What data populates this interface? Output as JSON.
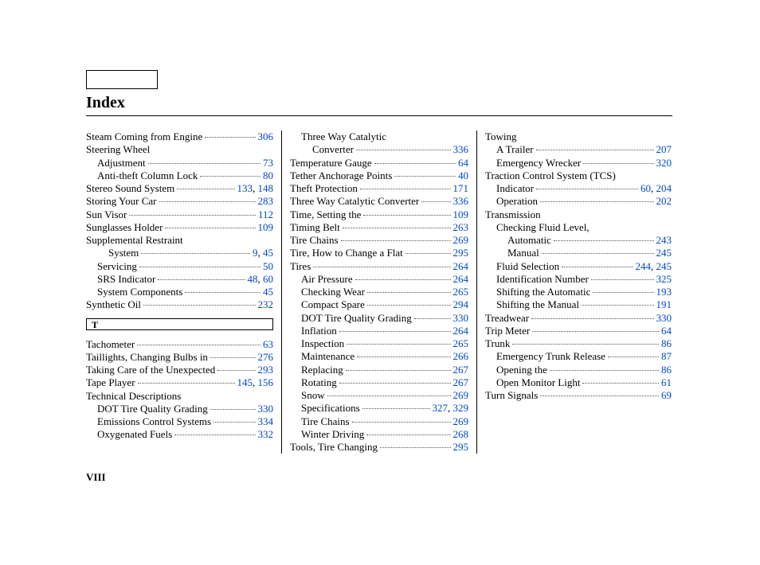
{
  "title": "Index",
  "page_number": "VIII",
  "link_color": "#0046c8",
  "text_color": "#000000",
  "columns": [
    {
      "blocks": [
        {
          "type": "entry",
          "indent": 0,
          "label": "Steam Coming from Engine",
          "pages": [
            "306"
          ]
        },
        {
          "type": "entry",
          "indent": 0,
          "label": "Steering Wheel",
          "pages": []
        },
        {
          "type": "entry",
          "indent": 1,
          "label": "Adjustment",
          "pages": [
            "73"
          ]
        },
        {
          "type": "entry",
          "indent": 1,
          "label": "Anti-theft Column Lock",
          "pages": [
            "80"
          ]
        },
        {
          "type": "entry",
          "indent": 0,
          "label": "Stereo Sound System",
          "pages": [
            "133",
            "148"
          ]
        },
        {
          "type": "entry",
          "indent": 0,
          "label": "Storing Your Car",
          "pages": [
            "283"
          ]
        },
        {
          "type": "entry",
          "indent": 0,
          "label": "Sun Visor",
          "pages": [
            "112"
          ]
        },
        {
          "type": "entry",
          "indent": 0,
          "label": "Sunglasses Holder",
          "pages": [
            "109"
          ]
        },
        {
          "type": "entry",
          "indent": 0,
          "label": "Supplemental Restraint",
          "pages": []
        },
        {
          "type": "entry",
          "indent": 2,
          "label": "System",
          "pages": [
            "9",
            "45"
          ]
        },
        {
          "type": "entry",
          "indent": 1,
          "label": "Servicing",
          "pages": [
            "50"
          ]
        },
        {
          "type": "entry",
          "indent": 1,
          "label": "SRS Indicator",
          "pages": [
            "48",
            "60"
          ]
        },
        {
          "type": "entry",
          "indent": 1,
          "label": "System Components",
          "pages": [
            "45"
          ]
        },
        {
          "type": "entry",
          "indent": 0,
          "label": "Synthetic Oil",
          "pages": [
            "232"
          ]
        },
        {
          "type": "letter",
          "label": "T"
        },
        {
          "type": "entry",
          "indent": 0,
          "label": "Tachometer",
          "pages": [
            "63"
          ]
        },
        {
          "type": "entry",
          "indent": 0,
          "label": "Taillights, Changing Bulbs in",
          "pages": [
            "276"
          ]
        },
        {
          "type": "entry",
          "indent": 0,
          "label": "Taking Care of the Unexpected",
          "pages": [
            "293"
          ]
        },
        {
          "type": "entry",
          "indent": 0,
          "label": "Tape Player",
          "pages": [
            "145",
            "156"
          ]
        },
        {
          "type": "entry",
          "indent": 0,
          "label": "Technical Descriptions",
          "pages": []
        },
        {
          "type": "entry",
          "indent": 1,
          "label": "DOT Tire Quality Grading",
          "pages": [
            "330"
          ]
        },
        {
          "type": "entry",
          "indent": 1,
          "label": "Emissions Control Systems",
          "pages": [
            "334"
          ]
        },
        {
          "type": "entry",
          "indent": 1,
          "label": "Oxygenated Fuels",
          "pages": [
            "332"
          ]
        }
      ]
    },
    {
      "blocks": [
        {
          "type": "entry",
          "indent": 1,
          "label": "Three Way Catalytic",
          "pages": []
        },
        {
          "type": "entry",
          "indent": 2,
          "label": "Converter",
          "pages": [
            "336"
          ]
        },
        {
          "type": "entry",
          "indent": 0,
          "label": "Temperature Gauge",
          "pages": [
            "64"
          ]
        },
        {
          "type": "entry",
          "indent": 0,
          "label": "Tether Anchorage Points",
          "pages": [
            "40"
          ]
        },
        {
          "type": "entry",
          "indent": 0,
          "label": "Theft Protection",
          "pages": [
            "171"
          ]
        },
        {
          "type": "entry",
          "indent": 0,
          "label": "Three Way Catalytic Converter",
          "pages": [
            "336"
          ]
        },
        {
          "type": "entry",
          "indent": 0,
          "label": "Time, Setting the",
          "pages": [
            "109"
          ]
        },
        {
          "type": "entry",
          "indent": 0,
          "label": "Timing Belt",
          "pages": [
            "263"
          ]
        },
        {
          "type": "entry",
          "indent": 0,
          "label": "Tire Chains",
          "pages": [
            "269"
          ]
        },
        {
          "type": "entry",
          "indent": 0,
          "label": "Tire, How to Change a Flat",
          "pages": [
            "295"
          ]
        },
        {
          "type": "entry",
          "indent": 0,
          "label": "Tires",
          "pages": [
            "264"
          ]
        },
        {
          "type": "entry",
          "indent": 1,
          "label": "Air Pressure",
          "pages": [
            "264"
          ]
        },
        {
          "type": "entry",
          "indent": 1,
          "label": "Checking Wear",
          "pages": [
            "265"
          ]
        },
        {
          "type": "entry",
          "indent": 1,
          "label": "Compact Spare",
          "pages": [
            "294"
          ]
        },
        {
          "type": "entry",
          "indent": 1,
          "label": "DOT Tire Quality Grading",
          "pages": [
            "330"
          ]
        },
        {
          "type": "entry",
          "indent": 1,
          "label": "Inflation",
          "pages": [
            "264"
          ]
        },
        {
          "type": "entry",
          "indent": 1,
          "label": "Inspection",
          "pages": [
            "265"
          ]
        },
        {
          "type": "entry",
          "indent": 1,
          "label": "Maintenance",
          "pages": [
            "266"
          ]
        },
        {
          "type": "entry",
          "indent": 1,
          "label": "Replacing",
          "pages": [
            "267"
          ]
        },
        {
          "type": "entry",
          "indent": 1,
          "label": "Rotating",
          "pages": [
            "267"
          ]
        },
        {
          "type": "entry",
          "indent": 1,
          "label": "Snow",
          "pages": [
            "269"
          ]
        },
        {
          "type": "entry",
          "indent": 1,
          "label": "Specifications",
          "pages": [
            "327",
            "329"
          ]
        },
        {
          "type": "entry",
          "indent": 1,
          "label": "Tire Chains",
          "pages": [
            "269"
          ]
        },
        {
          "type": "entry",
          "indent": 1,
          "label": "Winter Driving",
          "pages": [
            "268"
          ]
        },
        {
          "type": "entry",
          "indent": 0,
          "label": "Tools, Tire Changing",
          "pages": [
            "295"
          ]
        }
      ]
    },
    {
      "blocks": [
        {
          "type": "entry",
          "indent": 0,
          "label": "Towing",
          "pages": []
        },
        {
          "type": "entry",
          "indent": 1,
          "label": "A Trailer",
          "pages": [
            "207"
          ]
        },
        {
          "type": "entry",
          "indent": 1,
          "label": "Emergency Wrecker",
          "pages": [
            "320"
          ]
        },
        {
          "type": "entry",
          "indent": 0,
          "label": "Traction Control System (TCS)",
          "pages": []
        },
        {
          "type": "entry",
          "indent": 1,
          "label": "Indicator",
          "pages": [
            "60",
            "204"
          ]
        },
        {
          "type": "entry",
          "indent": 1,
          "label": "Operation",
          "pages": [
            "202"
          ]
        },
        {
          "type": "entry",
          "indent": 0,
          "label": "Transmission",
          "pages": []
        },
        {
          "type": "entry",
          "indent": 1,
          "label": "Checking Fluid Level,",
          "pages": []
        },
        {
          "type": "entry",
          "indent": 2,
          "label": "Automatic",
          "pages": [
            "243"
          ]
        },
        {
          "type": "entry",
          "indent": 2,
          "label": "Manual",
          "pages": [
            "245"
          ]
        },
        {
          "type": "entry",
          "indent": 1,
          "label": "Fluid Selection",
          "pages": [
            "244",
            "245"
          ]
        },
        {
          "type": "entry",
          "indent": 1,
          "label": "Identification Number",
          "pages": [
            "325"
          ]
        },
        {
          "type": "entry",
          "indent": 1,
          "label": "Shifting the Automatic",
          "pages": [
            "193"
          ]
        },
        {
          "type": "entry",
          "indent": 1,
          "label": "Shifting the Manual",
          "pages": [
            "191"
          ]
        },
        {
          "type": "entry",
          "indent": 0,
          "label": "Treadwear",
          "pages": [
            "330"
          ]
        },
        {
          "type": "entry",
          "indent": 0,
          "label": "Trip Meter",
          "pages": [
            "64"
          ]
        },
        {
          "type": "entry",
          "indent": 0,
          "label": "Trunk",
          "pages": [
            "86"
          ]
        },
        {
          "type": "entry",
          "indent": 1,
          "label": "Emergency Trunk Release",
          "pages": [
            "87"
          ]
        },
        {
          "type": "entry",
          "indent": 1,
          "label": "Opening the",
          "pages": [
            "86"
          ]
        },
        {
          "type": "entry",
          "indent": 1,
          "label": "Open Monitor Light",
          "pages": [
            "61"
          ]
        },
        {
          "type": "entry",
          "indent": 0,
          "label": "Turn Signals",
          "pages": [
            "69"
          ]
        }
      ]
    }
  ]
}
